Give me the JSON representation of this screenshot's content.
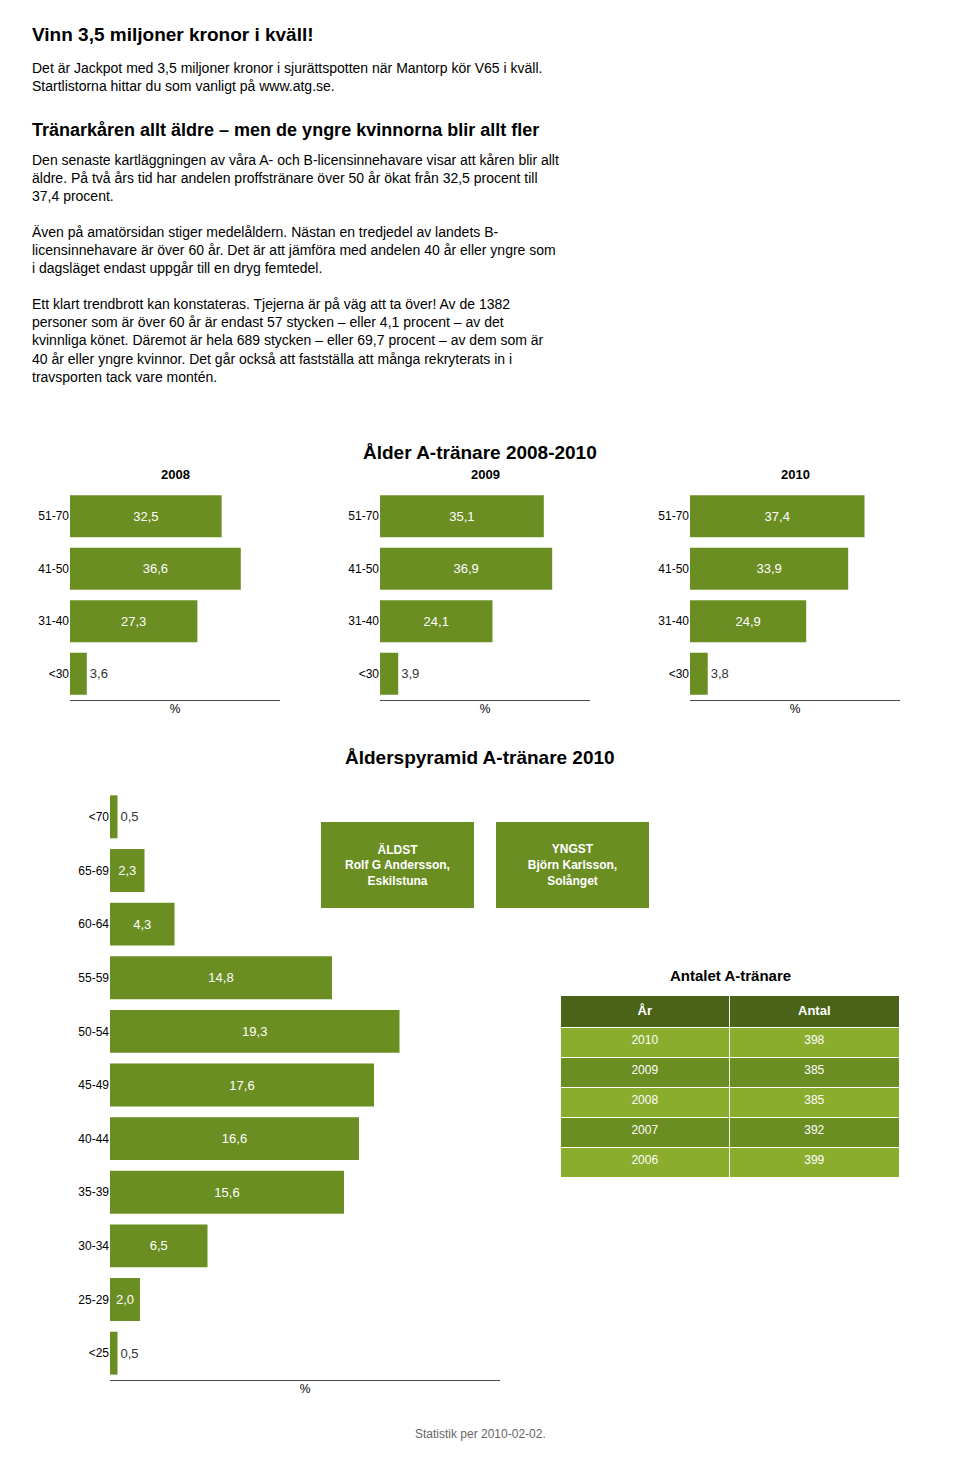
{
  "chart_data": [
    {
      "type": "text",
      "title": "Vinn 3,5 miljoner kronor i kväll!",
      "annotations": [
        "Det är Jackpot med 3,5 miljoner kronor i sjurättspotten när Mantorp kör V65 i kväll.\nStartlistorna hittar du som vanligt på www.atg.se."
      ]
    },
    {
      "type": "text",
      "title": "Tränarkåren allt äldre – men de yngre kvinnorna blir allt fler",
      "annotations": [
        "Den senaste kartläggningen av våra A- och B-licensinnehavare visar att kåren blir allt\näldre. På två års tid har andelen proffstränare över 50 år ökat från 32,5 procent till\n37,4 procent.",
        "Även på amatörsidan stiger medelåldern. Nästan en tredjedel av landets B-\nlicensinnehavare är över 60 år. Det är att jämföra med andelen 40 år eller yngre som\ni dagsläget endast uppgår till en dryg femtedel.",
        "Ett klart trendbrott kan konstateras. Tjejerna är på väg att ta över! Av de 1382\npersoner som är över 60 år är endast 57 stycken – eller 4,1 procent – av det\nkvinnliga könet. Däremot är hela 689 stycken – eller 69,7 procent – av dem som är\n40 år eller yngre kvinnor. Det går också att fastställa att många rekryterats in i\ntravsporten tack vare montén."
      ]
    },
    {
      "type": "bar",
      "title": "Ålder A-tränare 2008-2010",
      "orientation": "horizontal",
      "categories": [
        "51-70",
        "41-50",
        "31-40",
        "<30"
      ],
      "series": [
        {
          "name": "2008",
          "values": [
            32.5,
            36.6,
            27.3,
            3.6
          ],
          "value_labels": [
            "32,5",
            "36,6",
            "27,3",
            "3,6"
          ]
        },
        {
          "name": "2009",
          "values": [
            35.1,
            36.9,
            24.1,
            3.9
          ],
          "value_labels": [
            "35,1",
            "36,9",
            "24,1",
            "3,9"
          ]
        },
        {
          "name": "2010",
          "values": [
            37.4,
            33.9,
            24.9,
            3.8
          ],
          "value_labels": [
            "37,4",
            "33,9",
            "24,9",
            "3,8"
          ]
        }
      ],
      "color": "#6b8e23",
      "xlim": [
        0,
        45
      ],
      "xlabel": "%",
      "tick_labels": "y",
      "data_labels": true
    },
    {
      "type": "bar",
      "title": "Ålderspyramid A-tränare 2010",
      "orientation": "horizontal",
      "categories": [
        "<70",
        "65-69",
        "60-64",
        "55-59",
        "50-54",
        "45-49",
        "40-44",
        "35-39",
        "30-34",
        "25-29",
        "<25"
      ],
      "values": [
        0.5,
        2.3,
        4.3,
        14.8,
        19.3,
        17.6,
        16.6,
        15.6,
        6.5,
        2.0,
        0.5
      ],
      "value_labels": [
        "0,5",
        "2,3",
        "4,3",
        "14,8",
        "19,3",
        "17,6",
        "16,6",
        "15,6",
        "6,5",
        "2,0",
        "0,5"
      ],
      "color": "#6b8e23",
      "xlim": [
        0,
        26
      ],
      "xlabel": "%",
      "tick_labels": "y",
      "data_labels": true,
      "annotations": [
        "ÄLDST\nRolf G Andersson,\nEskilstuna",
        "YNGST\nBjörn Karlsson,\nSolånget"
      ]
    },
    {
      "type": "table",
      "title": "Antalet A-tränare",
      "columns": [
        "År",
        "Antal"
      ],
      "categories": [
        "2010",
        "2009",
        "2008",
        "2007",
        "2006"
      ],
      "values": [
        398,
        385,
        385,
        392,
        399
      ],
      "color": "#4a6319",
      "colors": [
        "#8aad2e",
        "#6b8e23",
        "#8aad2e",
        "#6b8e23",
        "#8aad2e"
      ]
    },
    {
      "type": "text",
      "annotations": [
        "Statistik per 2010-02-02."
      ]
    }
  ]
}
